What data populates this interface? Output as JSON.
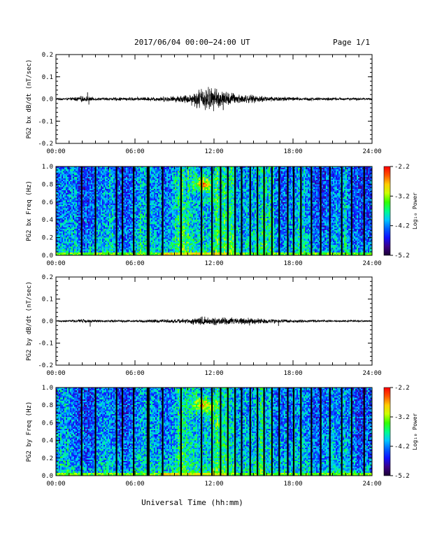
{
  "header": {
    "title": "2017/06/04  00:00−24:00 UT",
    "page": "Page 1/1"
  },
  "footer": {
    "xlabel": "Universal Time (hh:mm)"
  },
  "colors": {
    "trace": "#000000",
    "colormap": [
      "#1a0033",
      "#3a0088",
      "#1010ff",
      "#0060ff",
      "#00c8ff",
      "#00ff88",
      "#33ff00",
      "#ccff00",
      "#ffcc00",
      "#ff5500",
      "#ff0000"
    ]
  },
  "chart_data": [
    {
      "type": "line",
      "ylabel": "PG2 bx dB/dt (nT/sec)",
      "x_ticks": [
        "00:00",
        "06:00",
        "12:00",
        "18:00",
        "24:00"
      ],
      "y_ticks": [
        "0.2",
        "0.1",
        "0.0",
        "-0.1",
        "-0.2"
      ],
      "ylim": [
        -0.2,
        0.2
      ],
      "xlim_hours": [
        0,
        24
      ],
      "envelope": {
        "hours": [
          0,
          1,
          2,
          3,
          4,
          5,
          6,
          7,
          8,
          9,
          10,
          10.5,
          11,
          11.5,
          12,
          12.5,
          13,
          14,
          15,
          16,
          17,
          18,
          19,
          20,
          21,
          22,
          23,
          24
        ],
        "amplitude": [
          0.004,
          0.005,
          0.012,
          0.006,
          0.006,
          0.007,
          0.007,
          0.008,
          0.01,
          0.012,
          0.018,
          0.03,
          0.045,
          0.05,
          0.045,
          0.035,
          0.03,
          0.02,
          0.015,
          0.012,
          0.01,
          0.008,
          0.007,
          0.006,
          0.006,
          0.005,
          0.005,
          0.004
        ]
      },
      "spikes": [
        [
          2.4,
          0.03
        ],
        [
          2.5,
          -0.025
        ],
        [
          11.4,
          0.04
        ],
        [
          12.7,
          -0.05
        ],
        [
          12.2,
          0.045
        ]
      ]
    },
    {
      "type": "heatmap",
      "ylabel": "PG2 bx Freq (Hz)",
      "x_ticks": [
        "00:00",
        "06:00",
        "12:00",
        "18:00",
        "24:00"
      ],
      "y_ticks": [
        "1.0",
        "0.8",
        "0.6",
        "0.4",
        "0.2",
        "0.0"
      ],
      "ylim": [
        0,
        1.0
      ],
      "colorbar": {
        "label": "Log₁₀ Power",
        "ticks": [
          "-2.2",
          "-3.2",
          "-4.2",
          "-5.2"
        ],
        "range": [
          -5.2,
          -2.2
        ]
      },
      "data_gap_hours": [
        1.95,
        3.0,
        4.6,
        5.05,
        5.9,
        6.95,
        7.05,
        8.1,
        9.5,
        11.05,
        11.85,
        12.5,
        13.05,
        13.6,
        14.1,
        14.75,
        15.3,
        15.8,
        16.4,
        16.95,
        17.6,
        18.05,
        18.6,
        19.4,
        20.1,
        20.8,
        21.7,
        22.45,
        23.4
      ]
    },
    {
      "type": "line",
      "ylabel": "PG2 by dB/dt (nT/sec)",
      "x_ticks": [
        "00:00",
        "06:00",
        "12:00",
        "18:00",
        "24:00"
      ],
      "y_ticks": [
        "0.2",
        "0.1",
        "0.0",
        "-0.1",
        "-0.2"
      ],
      "ylim": [
        -0.2,
        0.2
      ],
      "xlim_hours": [
        0,
        24
      ],
      "envelope": {
        "hours": [
          0,
          1,
          2,
          3,
          4,
          5,
          6,
          7,
          8,
          9,
          10,
          10.5,
          11,
          11.5,
          12,
          12.5,
          13,
          14,
          15,
          16,
          17,
          18,
          19,
          20,
          21,
          22,
          23,
          24
        ],
        "amplitude": [
          0.003,
          0.004,
          0.008,
          0.005,
          0.005,
          0.005,
          0.005,
          0.006,
          0.007,
          0.008,
          0.01,
          0.014,
          0.018,
          0.017,
          0.016,
          0.014,
          0.015,
          0.014,
          0.012,
          0.01,
          0.008,
          0.006,
          0.005,
          0.005,
          0.004,
          0.004,
          0.004,
          0.003
        ]
      },
      "spikes": [
        [
          2.6,
          -0.025
        ],
        [
          11.3,
          0.02
        ],
        [
          14.7,
          -0.02
        ],
        [
          16.9,
          -0.022
        ]
      ]
    },
    {
      "type": "heatmap",
      "ylabel": "PG2 by Freq (Hz)",
      "x_ticks": [
        "00:00",
        "06:00",
        "12:00",
        "18:00",
        "24:00"
      ],
      "y_ticks": [
        "1.0",
        "0.8",
        "0.6",
        "0.4",
        "0.2",
        "0.0"
      ],
      "ylim": [
        0,
        1.0
      ],
      "colorbar": {
        "label": "Log₁₀ Power",
        "ticks": [
          "-2.2",
          "-3.2",
          "-4.2",
          "-5.2"
        ],
        "range": [
          -5.2,
          -2.2
        ]
      },
      "data_gap_hours": [
        1.95,
        3.0,
        4.6,
        5.05,
        5.9,
        6.95,
        7.05,
        8.1,
        9.5,
        11.05,
        11.85,
        12.5,
        13.05,
        13.6,
        14.1,
        14.75,
        15.3,
        15.8,
        16.4,
        16.95,
        17.6,
        18.05,
        18.6,
        19.4,
        20.1,
        20.8,
        21.7,
        22.45,
        23.4
      ]
    }
  ]
}
